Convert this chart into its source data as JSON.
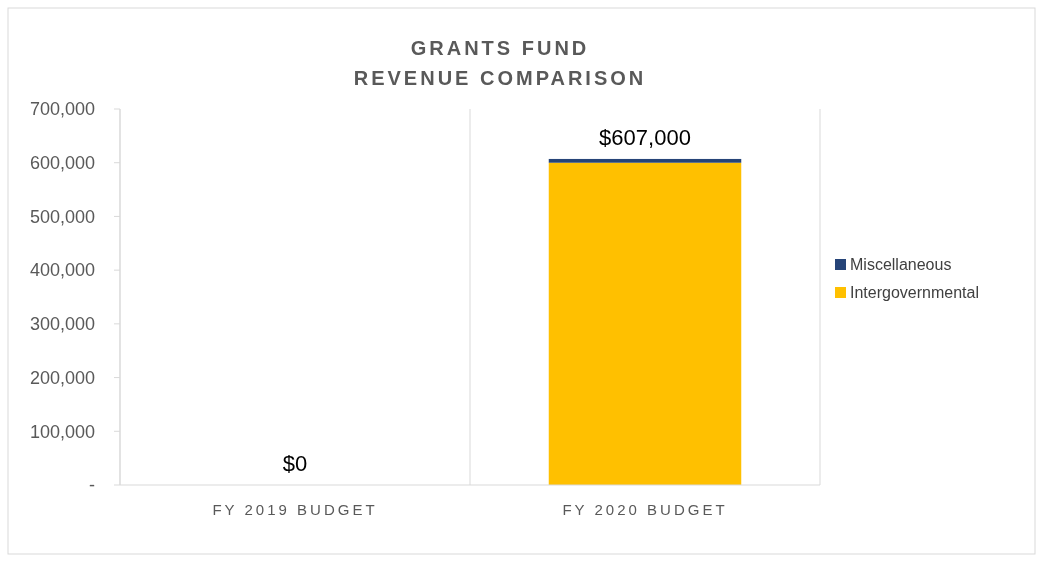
{
  "chart_data": {
    "type": "bar",
    "title": "GRANTS FUND\nREVENUE COMPARISON",
    "categories": [
      "FY 2019 BUDGET",
      "FY 2020 BUDGET"
    ],
    "stacked": true,
    "series": [
      {
        "name": "Intergovernmental",
        "color": "#ffc000",
        "values": [
          0,
          600000
        ]
      },
      {
        "name": "Miscellaneous",
        "color": "#264478",
        "values": [
          0,
          7000
        ]
      }
    ],
    "totals": [
      "$0",
      "$607,000"
    ],
    "ylim": [
      0,
      700000
    ],
    "yticks": [
      {
        "value": 0,
        "label": "-"
      },
      {
        "value": 100000,
        "label": "100,000"
      },
      {
        "value": 200000,
        "label": "200,000"
      },
      {
        "value": 300000,
        "label": "300,000"
      },
      {
        "value": 400000,
        "label": "400,000"
      },
      {
        "value": 500000,
        "label": "500,000"
      },
      {
        "value": 600000,
        "label": "600,000"
      },
      {
        "value": 700000,
        "label": "700,000"
      }
    ],
    "grid": "x",
    "legend": "right"
  }
}
